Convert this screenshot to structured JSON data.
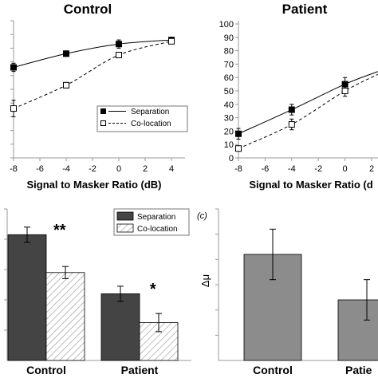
{
  "chart_data": [
    {
      "type": "line",
      "title": "Control",
      "xlabel": "Signal to Masker Ratio (dB)",
      "x_ticks": [
        "-8",
        "-6",
        "-4",
        "-2",
        "0",
        "2",
        "4"
      ],
      "xlim": [
        -8,
        4
      ],
      "ylim": [
        0,
        100
      ],
      "series": [
        {
          "name": "Separation",
          "marker": "filled-square",
          "line": "solid",
          "x": [
            -8,
            -4,
            0,
            4
          ],
          "y": [
            66,
            76,
            83,
            86
          ],
          "err": [
            3,
            2,
            3,
            1
          ]
        },
        {
          "name": "Co-location",
          "marker": "open-square",
          "line": "dashed",
          "x": [
            -8,
            -4,
            0,
            4
          ],
          "y": [
            36,
            53,
            75,
            85
          ],
          "err": [
            6,
            2,
            2,
            1
          ]
        }
      ],
      "legend_position": "lower-right"
    },
    {
      "type": "line",
      "title": "Patient",
      "xlabel": "Signal to Masker Ratio (d",
      "x_ticks": [
        "-8",
        "-6",
        "-4",
        "-2",
        "0",
        "2"
      ],
      "y_ticks": [
        "0",
        "10",
        "20",
        "30",
        "40",
        "50",
        "60",
        "70",
        "80",
        "90",
        "100"
      ],
      "xlim": [
        -8,
        2
      ],
      "ylim": [
        0,
        100
      ],
      "series": [
        {
          "name": "Separation",
          "marker": "filled-square",
          "line": "solid",
          "x": [
            -8,
            -4,
            0
          ],
          "y": [
            18,
            36,
            55
          ],
          "err": [
            4,
            4,
            5
          ]
        },
        {
          "name": "Co-location",
          "marker": "open-square",
          "line": "dashed",
          "x": [
            -8,
            -4,
            0
          ],
          "y": [
            7,
            25,
            50
          ],
          "err": [
            2,
            4,
            4
          ]
        }
      ]
    },
    {
      "type": "bar",
      "categories": [
        "Control",
        "Patient"
      ],
      "ylim": [
        0,
        1
      ],
      "series": [
        {
          "name": "Separation",
          "values": [
            0.83,
            0.44
          ],
          "err": [
            0.05,
            0.05
          ],
          "fill": "dark"
        },
        {
          "name": "Co-location",
          "values": [
            0.58,
            0.25
          ],
          "err": [
            0.04,
            0.06
          ],
          "fill": "hatched"
        }
      ],
      "significance": [
        "**",
        "*"
      ],
      "legend_position": "top-right"
    },
    {
      "type": "bar",
      "panel_label": "(c)",
      "ylabel": "Δμ",
      "categories": [
        "Control",
        "Patie"
      ],
      "ylim": [
        0,
        6
      ],
      "series": [
        {
          "name": "",
          "values": [
            4.2,
            2.4
          ],
          "err": [
            1.0,
            0.8
          ]
        }
      ]
    }
  ],
  "colors": {
    "axis": "#999999",
    "line": "#000000",
    "dark_bar": "#444444",
    "hatch_bg": "#ffffff",
    "hatch_line": "#9a9a9a",
    "grey_bar": "#8c8c8c"
  }
}
